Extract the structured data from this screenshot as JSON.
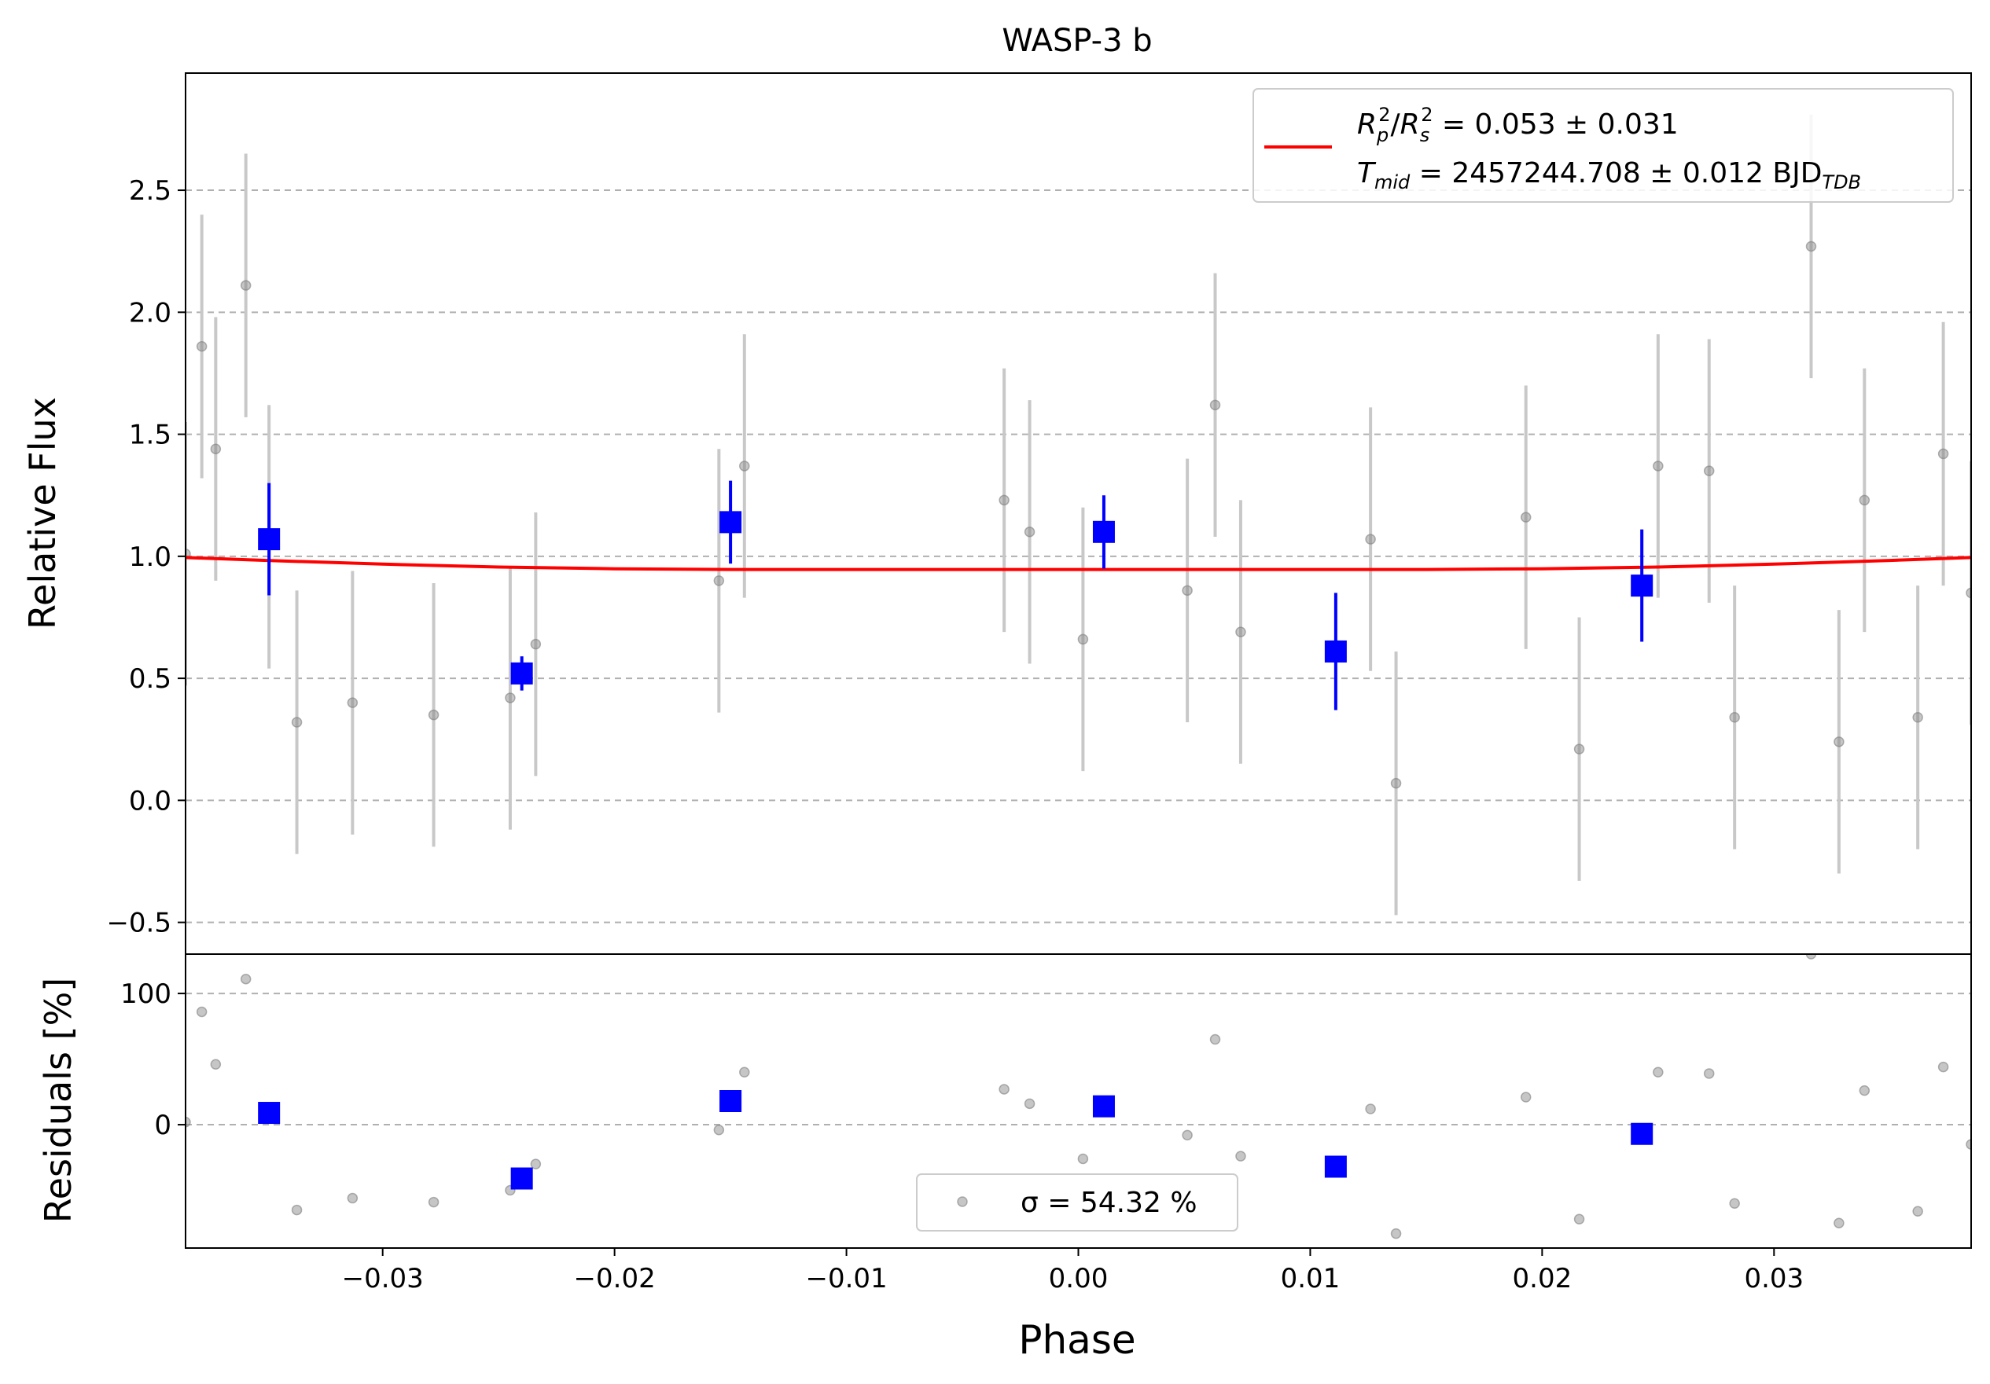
{
  "chart_data": [
    {
      "type": "scatter",
      "title": "WASP-3 b",
      "xlabel": "",
      "ylabel": "Relative Flux",
      "xlim": [
        -0.0385,
        0.0385
      ],
      "ylim": [
        -0.63,
        2.98
      ],
      "yticks": [
        -0.5,
        0.0,
        0.5,
        1.0,
        1.5,
        2.0,
        2.5
      ],
      "ytick_labels": [
        "−0.5",
        "0.0",
        "0.5",
        "1.0",
        "1.5",
        "2.0",
        "2.5"
      ],
      "grid": "horizontal dashed",
      "legend_position": "top-right",
      "legend": [
        {
          "text": "R_p^2/R_s^2 = 0.053 ± 0.031",
          "color": "#ff0000"
        },
        {
          "text": "T_mid = 2457244.708 ± 0.012 BJD_TDB",
          "color": "#ff0000"
        }
      ],
      "colors": {
        "raw": "#808080",
        "raw_err": "#c8c8c8",
        "binned": "#0000ff",
        "model": "#ff0000"
      },
      "series": [
        {
          "kind": "raw",
          "x": [
            -0.0385,
            -0.0378,
            -0.0372,
            -0.0359,
            -0.0349,
            -0.0337,
            -0.0313,
            -0.0278,
            -0.0245,
            -0.0234,
            -0.0155,
            -0.0144,
            -0.0032,
            -0.0021,
            0.0002,
            0.0047,
            0.0059,
            0.007,
            0.0126,
            0.0137,
            0.0193,
            0.0216,
            0.025,
            0.0272,
            0.0283,
            0.0316,
            0.0328,
            0.0339,
            0.0362,
            0.0373,
            0.0385
          ],
          "y": [
            1.01,
            1.86,
            1.44,
            2.11,
            1.08,
            0.32,
            0.4,
            0.35,
            0.42,
            0.64,
            0.9,
            1.37,
            1.23,
            1.1,
            0.66,
            0.86,
            1.62,
            0.69,
            1.07,
            0.07,
            1.16,
            0.21,
            1.37,
            1.35,
            0.34,
            2.27,
            0.24,
            1.23,
            0.34,
            1.42,
            0.85
          ],
          "yerr": [
            0.54,
            0.54,
            0.54,
            0.54,
            0.54,
            0.54,
            0.54,
            0.54,
            0.54,
            0.54,
            0.54,
            0.54,
            0.54,
            0.54,
            0.54,
            0.54,
            0.54,
            0.54,
            0.54,
            0.54,
            0.54,
            0.54,
            0.54,
            0.54,
            0.54,
            0.54,
            0.54,
            0.54,
            0.54,
            0.54,
            0.54
          ]
        },
        {
          "kind": "binned",
          "x": [
            -0.0349,
            -0.024,
            -0.015,
            0.0011,
            0.0111,
            0.0243
          ],
          "y": [
            1.07,
            0.52,
            1.14,
            1.1,
            0.61,
            0.88
          ],
          "yerr": [
            0.23,
            0.07,
            0.17,
            0.15,
            0.24,
            0.23
          ]
        },
        {
          "kind": "model",
          "x": [
            -0.0385,
            -0.035,
            -0.03,
            -0.025,
            -0.02,
            -0.015,
            -0.01,
            -0.005,
            0.0,
            0.005,
            0.01,
            0.015,
            0.02,
            0.025,
            0.03,
            0.035,
            0.0385
          ],
          "y": [
            0.995,
            0.983,
            0.968,
            0.956,
            0.949,
            0.946,
            0.946,
            0.946,
            0.946,
            0.946,
            0.946,
            0.946,
            0.949,
            0.956,
            0.968,
            0.983,
            0.995
          ]
        }
      ]
    },
    {
      "type": "scatter",
      "title": "",
      "xlabel": "Phase",
      "ylabel": "Residuals [%]",
      "xlim": [
        -0.0385,
        0.0385
      ],
      "ylim": [
        -94,
        130
      ],
      "xticks": [
        -0.03,
        -0.02,
        -0.01,
        0.0,
        0.01,
        0.02,
        0.03
      ],
      "xtick_labels": [
        "−0.03",
        "−0.02",
        "−0.01",
        "0.00",
        "0.01",
        "0.02",
        "0.03"
      ],
      "yticks": [
        0,
        100
      ],
      "ytick_labels": [
        "0",
        "100"
      ],
      "grid": "horizontal dashed",
      "legend_position": "bottom-center",
      "legend": [
        {
          "text": "σ = 54.32 %",
          "color": "#808080"
        }
      ],
      "series": [
        {
          "kind": "raw",
          "x": [
            -0.0385,
            -0.0378,
            -0.0372,
            -0.0359,
            -0.0337,
            -0.0313,
            -0.0278,
            -0.0245,
            -0.0234,
            -0.0155,
            -0.0144,
            -0.0032,
            -0.0021,
            0.0002,
            0.0047,
            0.0059,
            0.007,
            0.0126,
            0.0137,
            0.0193,
            0.0216,
            0.025,
            0.0272,
            0.0283,
            0.0316,
            0.0328,
            0.0339,
            0.0362,
            0.0373,
            0.0385
          ],
          "y": [
            2,
            86,
            46,
            111,
            -65,
            -56,
            -59,
            -50,
            -30,
            -4,
            40,
            27,
            16,
            -26,
            -8,
            65,
            -24,
            12,
            -83,
            21,
            -72,
            40,
            39,
            -60,
            130,
            -75,
            26,
            -66,
            44,
            -15
          ]
        },
        {
          "kind": "binned",
          "x": [
            -0.0349,
            -0.024,
            -0.015,
            0.0011,
            0.0111,
            0.0243
          ],
          "y": [
            9,
            -41,
            18,
            14,
            -32,
            -7
          ]
        }
      ]
    }
  ]
}
